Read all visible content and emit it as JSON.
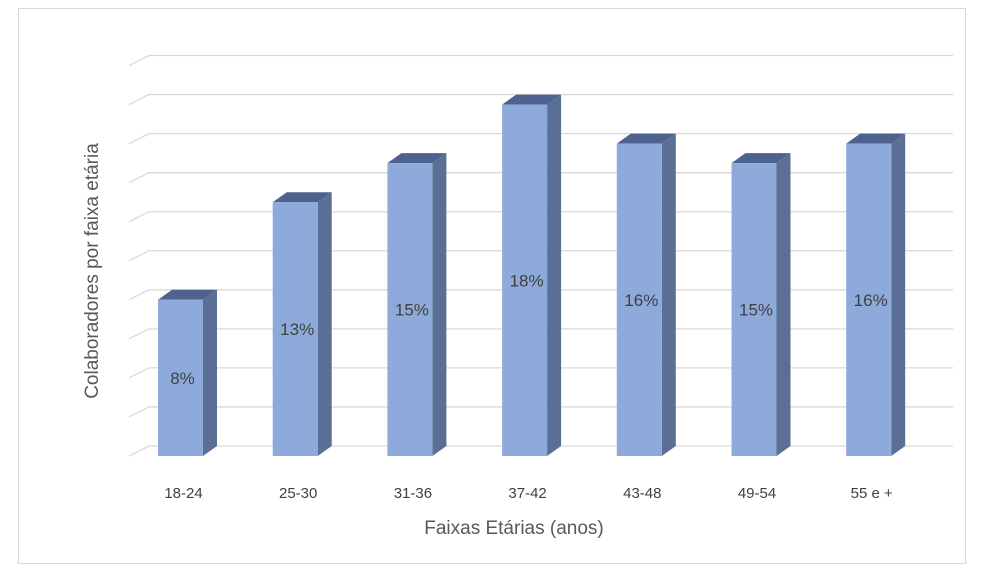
{
  "chart_data": {
    "type": "bar",
    "categories": [
      "18-24",
      "25-30",
      "31-36",
      "37-42",
      "43-48",
      "49-54",
      "55 e +"
    ],
    "values": [
      8,
      13,
      15,
      18,
      16,
      15,
      16
    ],
    "data_labels": [
      "8%",
      "13%",
      "15%",
      "18%",
      "16%",
      "15%",
      "16%"
    ],
    "title": "",
    "xlabel": "Faixas Etárias (anos)",
    "ylabel": "Colaboradores por faixa etária",
    "ylim": [
      0,
      20
    ],
    "grid": true,
    "legend": "none",
    "style": "3d-column",
    "colors": {
      "bar_front": "#8eaadb",
      "bar_side": "#5b6f94",
      "bar_top": "#4e6290",
      "grid": "#d9d9d9"
    }
  }
}
